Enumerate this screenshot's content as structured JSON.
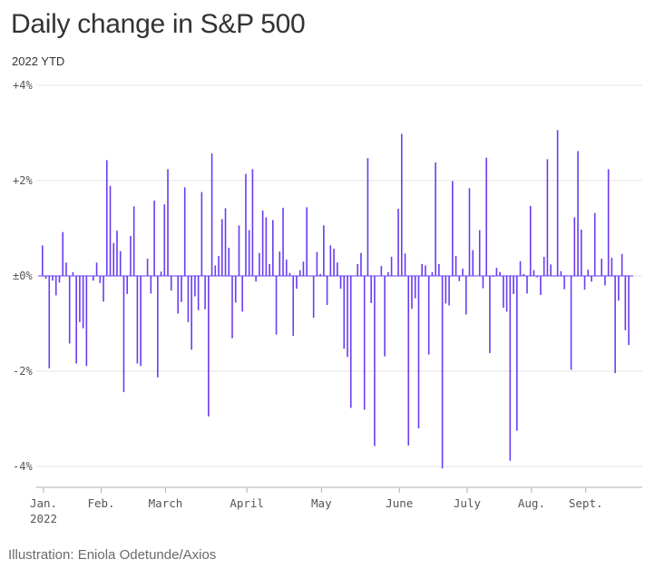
{
  "title": "Daily change in S&P 500",
  "subtitle": "2022 YTD",
  "credit": "Illustration: Eniola Odetunde/Axios",
  "colors": {
    "bar": "#6a3cf0",
    "grid": "#e6e6e6",
    "axis": "#b0b0b0",
    "text": "#333333"
  },
  "chart_data": {
    "type": "bar",
    "title": "Daily change in S&P 500",
    "subtitle": "2022 YTD",
    "xlabel": "",
    "ylabel": "",
    "unit": "%",
    "ylim": [
      -4.5,
      4.2
    ],
    "yticks": [
      {
        "value": 4,
        "label": "+4%"
      },
      {
        "value": 2,
        "label": "+2%"
      },
      {
        "value": 0,
        "label": "±0%"
      },
      {
        "value": -2,
        "label": "-2%"
      },
      {
        "value": -4,
        "label": "-4%"
      }
    ],
    "xticks": [
      {
        "month": 0,
        "label": "Jan.",
        "sublabel": "2022"
      },
      {
        "month": 1,
        "label": "Feb."
      },
      {
        "month": 2,
        "label": "March"
      },
      {
        "month": 3,
        "label": "April"
      },
      {
        "month": 4,
        "label": "May"
      },
      {
        "month": 5,
        "label": "June"
      },
      {
        "month": 6,
        "label": "July"
      },
      {
        "month": 7,
        "label": "Aug."
      },
      {
        "month": 8,
        "label": "Sept."
      }
    ],
    "grid": true,
    "months": [
      {
        "label": "Jan.",
        "values": [
          0.64,
          -0.06,
          -1.94,
          -0.1,
          -0.41,
          -0.14,
          0.92,
          0.28,
          -1.42,
          0.08,
          -1.84,
          -0.97,
          -1.1,
          -1.89,
          0.0,
          -0.1,
          0.28
        ]
      },
      {
        "label": "Feb.",
        "values": [
          -0.15,
          -0.54,
          2.43,
          1.89,
          0.69,
          0.95,
          0.52,
          -2.44,
          -0.38,
          0.84,
          1.46,
          -1.84,
          -1.89,
          -0.01,
          0.36,
          -0.37,
          1.58,
          -2.13,
          0.09
        ]
      },
      {
        "label": "March",
        "values": [
          1.5,
          2.24,
          -0.31,
          0.0,
          -0.79,
          -0.55,
          1.86,
          -0.97,
          -1.55,
          -0.43,
          -0.72,
          1.76,
          -0.7,
          -2.95,
          2.57,
          0.22,
          0.42,
          1.19,
          1.42,
          0.59,
          -1.31,
          -0.56,
          1.06,
          -0.75
        ]
      },
      {
        "label": "April",
        "values": [
          2.14,
          0.96,
          2.24,
          -0.12,
          0.48,
          1.37,
          1.23,
          0.25,
          1.17,
          -1.23,
          0.51,
          1.43,
          0.34,
          0.06,
          -1.26,
          -0.27,
          0.12,
          0.3,
          1.44,
          0.0,
          -0.88,
          0.5
        ]
      },
      {
        "label": "May",
        "values": [
          0.04,
          1.06,
          -0.61,
          0.64,
          0.57,
          0.28,
          -0.27,
          -1.53,
          -1.7,
          -2.77,
          0.01,
          0.25,
          0.48,
          -2.81,
          2.47,
          -0.57,
          -3.57,
          -0.01,
          0.21,
          -1.69,
          0.08,
          0.4,
          0.01
        ]
      },
      {
        "label": "June",
        "values": [
          1.41,
          2.98,
          0.47,
          -3.56,
          -0.69,
          -0.47,
          -3.2,
          0.25,
          0.22,
          -1.65,
          0.08,
          2.38,
          0.25,
          -4.04,
          -0.58,
          -0.62,
          1.99,
          0.42,
          -0.11,
          0.15
        ]
      },
      {
        "label": "July",
        "values": [
          -0.81,
          1.84,
          0.54,
          0.01,
          0.96,
          -0.26,
          2.48,
          -1.62,
          -0.02,
          0.17,
          0.08,
          -0.67,
          -0.75,
          -3.88,
          -0.38,
          -3.25,
          0.31,
          0.04,
          -0.37
        ]
      },
      {
        "label": "Aug.",
        "values": [
          1.47,
          0.12,
          -0.03,
          -0.4,
          0.4,
          2.45,
          0.24,
          -0.01,
          3.06,
          0.1,
          -0.28,
          0.0,
          -1.97,
          1.23,
          2.62,
          0.97
        ]
      },
      {
        "label": "Sept.",
        "values": [
          -0.29,
          0.13,
          -0.12,
          1.32,
          -0.01,
          0.36,
          -0.2,
          2.24,
          0.38,
          -2.04,
          -0.52,
          0.46,
          -1.14,
          -1.45
        ]
      }
    ]
  }
}
